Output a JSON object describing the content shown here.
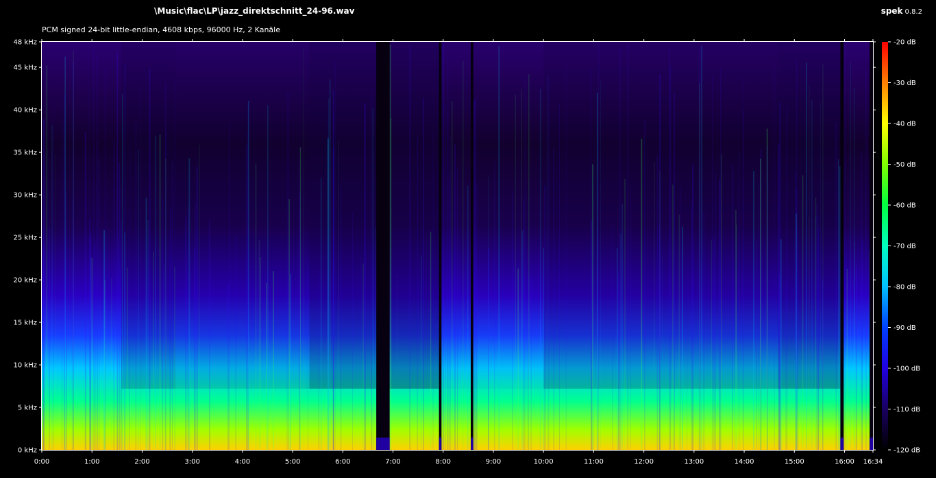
{
  "header": {
    "file_path": "\\Music\\flac\\LP\\jazz_direktschnitt_24-96.wav",
    "app_name": "spek",
    "app_version": "0.8.2",
    "audio_info": "PCM signed 24-bit little-endian, 4608 kbps, 96000 Hz, 2 Kanäle"
  },
  "freq_axis": {
    "labels": [
      "48 kHz",
      "45 kHz",
      "40 kHz",
      "35 kHz",
      "30 kHz",
      "25 kHz",
      "20 kHz",
      "15 kHz",
      "10 kHz",
      "5 kHz",
      "0 kHz"
    ],
    "values_khz": [
      48,
      45,
      40,
      35,
      30,
      25,
      20,
      15,
      10,
      5,
      0
    ]
  },
  "time_axis": {
    "labels": [
      "0:00",
      "1:00",
      "2:00",
      "3:00",
      "4:00",
      "5:00",
      "6:00",
      "7:00",
      "8:00",
      "9:00",
      "10:00",
      "11:00",
      "12:00",
      "13:00",
      "14:00",
      "15:00",
      "16:00",
      "16:34"
    ],
    "values_sec": [
      0,
      60,
      120,
      180,
      240,
      300,
      360,
      420,
      480,
      540,
      600,
      660,
      720,
      780,
      840,
      900,
      960,
      994
    ],
    "duration_sec": 994
  },
  "db_scale": {
    "labels": [
      "-20 dB",
      "-30 dB",
      "-40 dB",
      "-50 dB",
      "-60 dB",
      "-70 dB",
      "-80 dB",
      "-90 dB",
      "-100 dB",
      "-110 dB",
      "-120 dB"
    ],
    "values_db": [
      -20,
      -30,
      -40,
      -50,
      -60,
      -70,
      -80,
      -90,
      -100,
      -110,
      -120
    ],
    "gradient_colors": [
      "#ff0000",
      "#ff8000",
      "#ffff00",
      "#80ff00",
      "#00ff40",
      "#00ffc0",
      "#00c0ff",
      "#0040ff",
      "#2000e0",
      "#180060",
      "#000000"
    ]
  },
  "spectrogram": {
    "sample_rate_hz": 96000,
    "silences": [
      {
        "start_sec": 400,
        "end_sec": 416
      },
      {
        "start_sec": 475,
        "end_sec": 478
      },
      {
        "start_sec": 513,
        "end_sec": 516
      },
      {
        "start_sec": 955,
        "end_sec": 959
      },
      {
        "start_sec": 990,
        "end_sec": 994
      }
    ],
    "energy_profile": [
      {
        "start_sec": 0,
        "end_sec": 95,
        "level": 0.85
      },
      {
        "start_sec": 95,
        "end_sec": 160,
        "level": 0.62
      },
      {
        "start_sec": 160,
        "end_sec": 320,
        "level": 0.7
      },
      {
        "start_sec": 320,
        "end_sec": 400,
        "level": 0.5
      },
      {
        "start_sec": 416,
        "end_sec": 475,
        "level": 0.45
      },
      {
        "start_sec": 478,
        "end_sec": 513,
        "level": 0.8
      },
      {
        "start_sec": 516,
        "end_sec": 600,
        "level": 0.8
      },
      {
        "start_sec": 600,
        "end_sec": 880,
        "level": 0.6
      },
      {
        "start_sec": 880,
        "end_sec": 955,
        "level": 0.5
      },
      {
        "start_sec": 959,
        "end_sec": 990,
        "level": 0.85
      }
    ]
  }
}
